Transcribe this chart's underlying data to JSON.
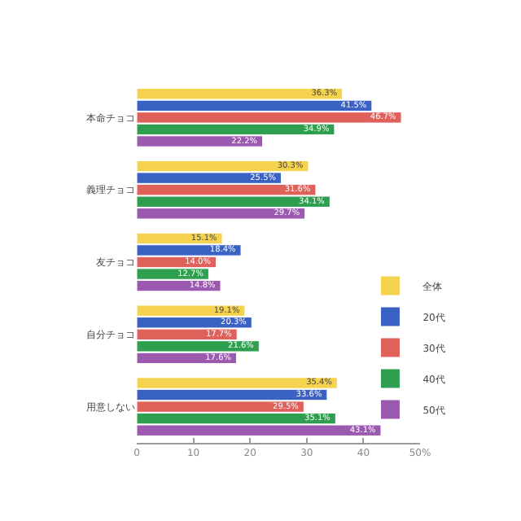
{
  "chart_data": {
    "type": "bar",
    "orientation": "horizontal",
    "categories": [
      "本命チョコ",
      "義理チョコ",
      "友チョコ",
      "自分チョコ",
      "用意しない"
    ],
    "series": [
      {
        "name": "全体",
        "color": "#f5d34f",
        "values": [
          36.3,
          30.3,
          15.1,
          19.1,
          35.4
        ],
        "value_labels": [
          "36.3%",
          "30.3%",
          "15.1%",
          "19.1%",
          "35.4%"
        ]
      },
      {
        "name": "20代",
        "color": "#3a62c4",
        "values": [
          41.5,
          25.5,
          18.4,
          20.3,
          33.6
        ],
        "value_labels": [
          "41.5%",
          "25.5%",
          "18.4%",
          "20.3%",
          "33.6%"
        ]
      },
      {
        "name": "30代",
        "color": "#e0605a",
        "values": [
          46.7,
          31.6,
          14.0,
          17.7,
          29.5
        ],
        "value_labels": [
          "46.7%",
          "31.6%",
          "14.0%",
          "17.7%",
          "29.5%"
        ]
      },
      {
        "name": "40代",
        "color": "#2e9e4f",
        "values": [
          34.9,
          34.1,
          12.7,
          21.6,
          35.1
        ],
        "value_labels": [
          "34.9%",
          "34.1%",
          "12.7%",
          "21.6%",
          "35.1%"
        ]
      },
      {
        "name": "50代",
        "color": "#9b59b0",
        "values": [
          22.2,
          29.7,
          14.8,
          17.6,
          43.1
        ],
        "value_labels": [
          "22.2%",
          "29.7%",
          "14.8%",
          "17.6%",
          "43.1%"
        ]
      }
    ],
    "xlim": [
      0,
      50
    ],
    "xticks": [
      0,
      10,
      20,
      30,
      40,
      {
        "value": 50,
        "label": "50%"
      }
    ],
    "grid": false,
    "legend": "right"
  }
}
